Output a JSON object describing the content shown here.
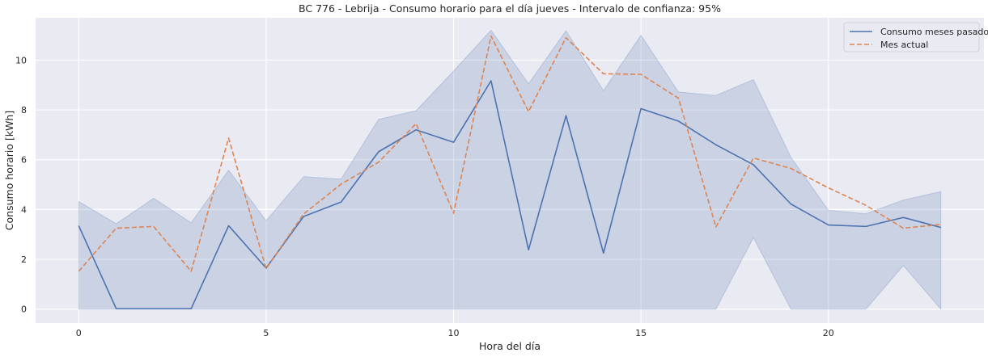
{
  "chart_data": {
    "type": "line",
    "title": "BC 776 - Lebrija - Consumo horario para el día jueves - Intervalo de confianza: 95%",
    "xlabel": "Hora del día",
    "ylabel": "Consumo horario [kWh]",
    "xlim": [
      -1.15,
      24.15
    ],
    "ylim": [
      -0.56,
      11.7
    ],
    "xticks": [
      0,
      5,
      10,
      15,
      20
    ],
    "yticks": [
      0,
      2,
      4,
      6,
      8,
      10
    ],
    "grid": true,
    "legend_position": "top-right",
    "x": [
      0,
      1,
      2,
      3,
      4,
      5,
      6,
      7,
      8,
      9,
      10,
      11,
      12,
      13,
      14,
      15,
      16,
      17,
      18,
      19,
      20,
      21,
      22,
      23
    ],
    "confidence_band": {
      "upper": [
        4.32,
        3.43,
        4.45,
        3.47,
        5.58,
        3.55,
        5.32,
        5.22,
        7.62,
        7.97,
        9.56,
        11.2,
        9.05,
        11.18,
        8.77,
        11.0,
        8.72,
        8.58,
        9.22,
        6.1,
        3.97,
        3.83,
        4.38,
        4.72
      ],
      "lower": [
        0,
        0,
        0,
        0,
        0,
        0,
        0,
        0,
        0,
        0,
        0,
        0,
        0,
        0,
        0,
        0,
        0,
        0,
        2.87,
        0,
        0,
        0,
        1.75,
        0
      ],
      "color": "#4c72b0"
    },
    "series": [
      {
        "name": "Consumo meses pasados",
        "style": "solid",
        "color": "#4c72b0",
        "values": [
          3.35,
          0.02,
          0.02,
          0.02,
          3.35,
          1.65,
          3.72,
          4.3,
          6.32,
          7.2,
          6.7,
          9.17,
          2.38,
          7.77,
          2.25,
          8.05,
          7.55,
          6.6,
          5.8,
          4.22,
          3.38,
          3.32,
          3.68,
          3.28
        ]
      },
      {
        "name": "Mes actual",
        "style": "dashed",
        "color": "#dd8452",
        "values": [
          1.52,
          3.25,
          3.32,
          1.52,
          6.87,
          1.62,
          3.82,
          5.02,
          5.9,
          7.45,
          3.85,
          10.97,
          7.93,
          10.9,
          9.45,
          9.43,
          8.47,
          3.3,
          6.07,
          5.65,
          4.87,
          4.17,
          3.25,
          3.4
        ]
      }
    ]
  }
}
